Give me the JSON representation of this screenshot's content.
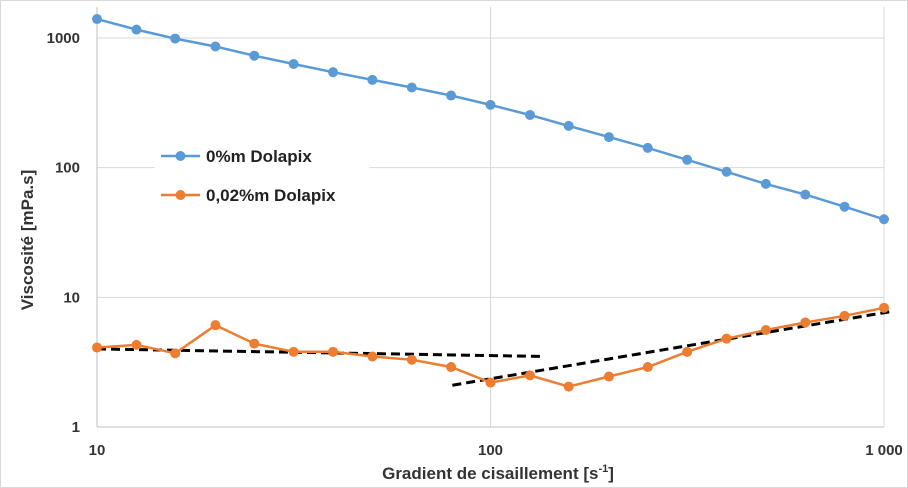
{
  "chart_data": {
    "type": "line",
    "x_scale": "log",
    "y_scale": "log",
    "xlim": [
      10,
      1000
    ],
    "ylim": [
      1,
      1600
    ],
    "xlabel": "Gradient de cisaillement [s-1]",
    "xlabel_main": "Gradient de cisaillement [s",
    "xlabel_sup": "-1",
    "xlabel_end": "]",
    "ylabel": "Viscosité [mPa.s]",
    "x_ticks": [
      10,
      100,
      1000
    ],
    "x_tick_labels": [
      "10",
      "100",
      "1 000"
    ],
    "y_ticks": [
      1,
      10,
      100,
      1000
    ],
    "y_tick_labels": [
      "1",
      "10",
      "100",
      "1000"
    ],
    "grid": true,
    "legend_position": "left-middle",
    "series": [
      {
        "name": "0%m Dolapix",
        "color": "#5B9BD5",
        "x": [
          10,
          12.6,
          15.8,
          20,
          25.1,
          31.6,
          39.8,
          50.1,
          63.1,
          79.4,
          100,
          126,
          158,
          200,
          251,
          316,
          398,
          501,
          631,
          794,
          1000
        ],
        "y": [
          1400,
          1160,
          990,
          860,
          730,
          630,
          545,
          475,
          415,
          360,
          305,
          255,
          210,
          172,
          142,
          115,
          93,
          75,
          62,
          50,
          40
        ]
      },
      {
        "name": "0,02%m Dolapix",
        "color": "#ED7D31",
        "x": [
          10,
          12.6,
          15.8,
          20,
          25.1,
          31.6,
          39.8,
          50.1,
          63.1,
          79.4,
          100,
          126,
          158,
          200,
          251,
          316,
          398,
          501,
          631,
          794,
          1000
        ],
        "y": [
          4.1,
          4.3,
          3.7,
          6.1,
          4.4,
          3.8,
          3.8,
          3.5,
          3.3,
          2.9,
          2.2,
          2.5,
          2.05,
          2.45,
          2.9,
          3.8,
          4.8,
          5.6,
          6.4,
          7.2,
          8.3
        ]
      }
    ],
    "trendlines": [
      {
        "style": "dashed",
        "color": "#000000",
        "from": [
          10,
          4.0
        ],
        "to": [
          135,
          3.5
        ]
      },
      {
        "style": "dashed",
        "color": "#000000",
        "from": [
          80,
          2.1
        ],
        "to": [
          1050,
          7.8
        ]
      }
    ]
  }
}
